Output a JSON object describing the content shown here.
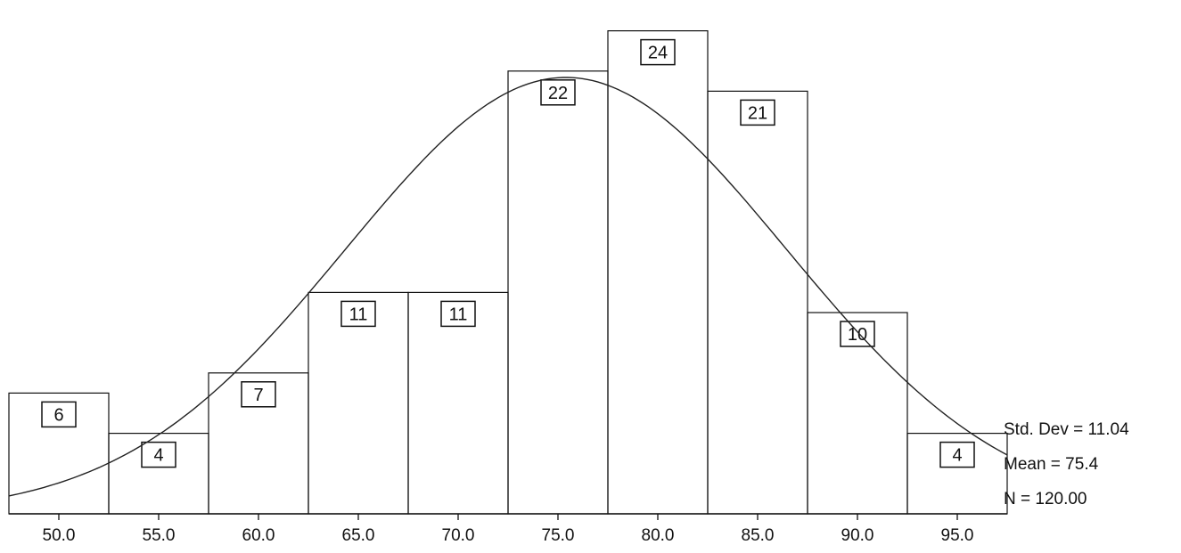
{
  "chart_data": {
    "type": "bar",
    "subtype": "histogram",
    "bin_centers": [
      50.0,
      55.0,
      60.0,
      65.0,
      70.0,
      75.0,
      80.0,
      85.0,
      90.0,
      95.0
    ],
    "bin_width": 5,
    "values": [
      6,
      4,
      7,
      11,
      11,
      22,
      24,
      21,
      10,
      4
    ],
    "tick_labels": [
      "50.0",
      "55.0",
      "60.0",
      "65.0",
      "70.0",
      "75.0",
      "80.0",
      "85.0",
      "90.0",
      "95.0"
    ],
    "normal_curve": {
      "mean": 75.4,
      "std_dev": 11.04,
      "n": 120
    },
    "xlim": [
      47.5,
      97.5
    ],
    "ylim": [
      0,
      25
    ],
    "grid": false,
    "title": "",
    "xlabel": "",
    "ylabel": ""
  },
  "stats": {
    "std_dev": "Std. Dev = 11.04",
    "mean": "Mean = 75.4",
    "n": "N = 120.00"
  },
  "colors": {
    "ink": "#111111",
    "background": "#ffffff"
  }
}
